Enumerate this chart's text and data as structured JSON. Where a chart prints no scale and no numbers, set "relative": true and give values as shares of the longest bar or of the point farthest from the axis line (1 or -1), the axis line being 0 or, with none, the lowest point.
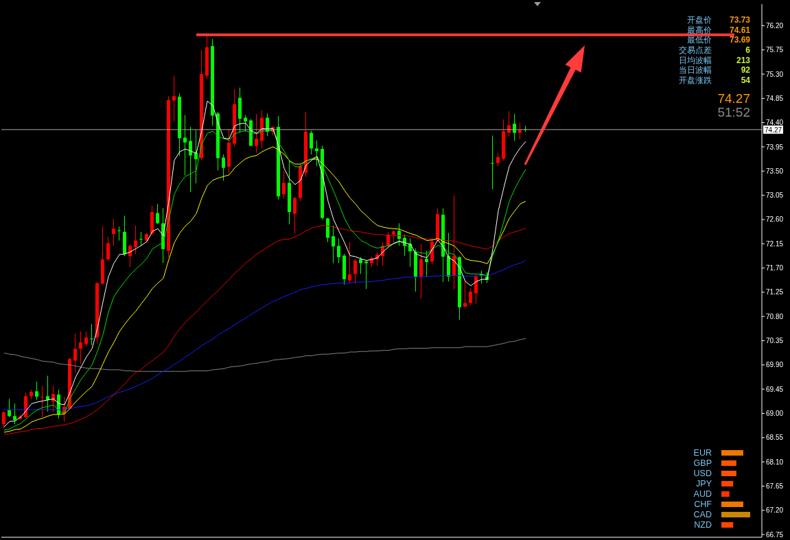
{
  "chart_data": [
    {
      "type": "candlestick",
      "categories": [
        null,
        null,
        null,
        null,
        null,
        null,
        null,
        null,
        null,
        null,
        null,
        null,
        null,
        null,
        null,
        null,
        null,
        null,
        null,
        null,
        null,
        null,
        null,
        null,
        null,
        null,
        null,
        null,
        null,
        null,
        null,
        null,
        null,
        null,
        null,
        null,
        null,
        null,
        null,
        null,
        null,
        null,
        null,
        null,
        null,
        null,
        null,
        null,
        null,
        null,
        null,
        null,
        null,
        null,
        null,
        null,
        null,
        null,
        null,
        null,
        null,
        null,
        null,
        null,
        null,
        null,
        null,
        null,
        null,
        null,
        null,
        null,
        null,
        null,
        null,
        null,
        null,
        null,
        null,
        null,
        null,
        null,
        null,
        null,
        null,
        null,
        null,
        null,
        null,
        null,
        null,
        null,
        null,
        null,
        null,
        null,
        null,
        null,
        null,
        null,
        null,
        null,
        null,
        null,
        null,
        null,
        null,
        null,
        null,
        null,
        null,
        null,
        null,
        null,
        null,
        null,
        null,
        null,
        null,
        null,
        null,
        null,
        null,
        null,
        null,
        null,
        null,
        null,
        null,
        null,
        null,
        null,
        null,
        null,
        null,
        null,
        null,
        null
      ],
      "ohlc": [
        [
          68.8,
          69.05,
          68.72,
          69.02
        ],
        [
          69.06,
          69.27,
          68.93,
          68.95
        ],
        [
          68.95,
          69.18,
          68.8,
          68.88
        ],
        [
          68.9,
          68.98,
          68.88,
          68.94
        ],
        [
          68.93,
          69.39,
          68.92,
          69.32
        ],
        [
          69.32,
          69.44,
          69.26,
          69.4
        ],
        [
          69.41,
          69.59,
          69.25,
          69.31
        ],
        [
          69.3,
          69.51,
          68.93,
          69.31
        ],
        [
          69.32,
          69.7,
          69.03,
          69.25
        ],
        [
          69.22,
          69.51,
          69.03,
          69.36
        ],
        [
          69.35,
          69.44,
          68.9,
          68.98
        ],
        [
          68.99,
          69.31,
          68.84,
          69.12
        ],
        [
          69.09,
          70.04,
          69.08,
          70.01
        ],
        [
          69.98,
          70.48,
          69.76,
          70.2
        ],
        [
          70.2,
          70.52,
          69.92,
          70.32
        ],
        [
          70.29,
          70.52,
          70.24,
          70.41
        ],
        [
          70.39,
          70.66,
          70.27,
          70.38
        ],
        [
          70.41,
          71.43,
          70.3,
          71.42
        ],
        [
          71.41,
          72.47,
          71.39,
          71.86
        ],
        [
          71.86,
          72.28,
          71.83,
          72.16
        ],
        [
          72.33,
          72.61,
          72.11,
          72.43
        ],
        [
          72.4,
          72.47,
          72.21,
          72.39
        ],
        [
          72.37,
          72.67,
          71.92,
          71.96
        ],
        [
          71.92,
          72.14,
          71.72,
          72.11
        ],
        [
          72.09,
          72.49,
          71.96,
          72.21
        ],
        [
          72.24,
          72.37,
          72.12,
          72.23
        ],
        [
          72.21,
          72.35,
          72.19,
          72.33
        ],
        [
          72.34,
          72.86,
          72.3,
          72.74
        ],
        [
          72.72,
          72.89,
          72.52,
          72.53
        ],
        [
          72.53,
          72.81,
          71.79,
          72.05
        ],
        [
          72.02,
          74.89,
          71.9,
          74.82
        ],
        [
          74.81,
          75.27,
          74.42,
          74.89
        ],
        [
          74.88,
          74.94,
          73.78,
          74.11
        ],
        [
          74.12,
          74.54,
          73.42,
          74.03
        ],
        [
          74.06,
          74.32,
          73.11,
          73.79
        ],
        [
          73.84,
          74.26,
          73.27,
          73.72
        ],
        [
          73.74,
          75.75,
          73.7,
          75.3
        ],
        [
          75.27,
          76.0,
          75.21,
          75.8
        ],
        [
          75.82,
          75.95,
          74.34,
          74.53
        ],
        [
          74.57,
          74.6,
          73.51,
          73.74
        ],
        [
          73.75,
          73.81,
          73.32,
          73.56
        ],
        [
          73.58,
          74.28,
          73.46,
          74.03
        ],
        [
          74.01,
          75.02,
          73.96,
          74.74
        ],
        [
          74.86,
          75.05,
          74.21,
          74.47
        ],
        [
          74.49,
          74.54,
          74.23,
          74.42
        ],
        [
          74.44,
          74.47,
          73.96,
          73.97
        ],
        [
          73.97,
          74.56,
          73.84,
          74.1
        ],
        [
          74.06,
          74.63,
          73.93,
          74.49
        ],
        [
          74.49,
          74.57,
          74.15,
          74.23
        ],
        [
          74.23,
          74.33,
          74.16,
          74.32
        ],
        [
          74.32,
          74.52,
          72.97,
          73.03
        ],
        [
          73.07,
          73.5,
          72.99,
          73.28
        ],
        [
          73.28,
          73.7,
          72.51,
          72.74
        ],
        [
          72.71,
          73.02,
          72.34,
          73.0
        ],
        [
          73.0,
          73.64,
          72.94,
          73.59
        ],
        [
          73.47,
          74.6,
          73.39,
          74.23
        ],
        [
          74.21,
          74.25,
          73.81,
          73.92
        ],
        [
          73.92,
          74.07,
          73.59,
          73.87
        ],
        [
          73.91,
          73.97,
          72.6,
          72.63
        ],
        [
          72.62,
          72.63,
          72.18,
          72.26
        ],
        [
          72.29,
          72.49,
          71.79,
          72.1
        ],
        [
          72.11,
          72.25,
          71.79,
          71.9
        ],
        [
          71.93,
          71.96,
          71.39,
          71.49
        ],
        [
          71.47,
          72.18,
          71.41,
          71.58
        ],
        [
          71.59,
          71.86,
          71.41,
          71.84
        ],
        [
          71.86,
          71.9,
          71.59,
          71.79
        ],
        [
          71.82,
          71.83,
          71.31,
          71.79
        ],
        [
          71.79,
          71.91,
          71.72,
          71.88
        ],
        [
          71.86,
          72.0,
          71.74,
          71.95
        ],
        [
          71.92,
          72.18,
          71.74,
          72.11
        ],
        [
          72.12,
          72.37,
          72.09,
          72.32
        ],
        [
          72.32,
          72.39,
          72.18,
          72.38
        ],
        [
          72.39,
          72.53,
          72.11,
          72.24
        ],
        [
          72.26,
          72.32,
          71.93,
          72.11
        ],
        [
          72.15,
          72.25,
          71.72,
          72.01
        ],
        [
          72.0,
          72.06,
          71.26,
          71.54
        ],
        [
          71.54,
          72.15,
          71.13,
          71.86
        ],
        [
          71.87,
          72.02,
          71.54,
          71.81
        ],
        [
          71.82,
          72.26,
          71.77,
          72.19
        ],
        [
          72.21,
          72.81,
          72.19,
          72.7
        ],
        [
          72.69,
          72.81,
          71.44,
          71.91
        ],
        [
          71.92,
          72.35,
          71.45,
          71.54
        ],
        [
          71.56,
          73.05,
          71.3,
          71.92
        ],
        [
          71.9,
          71.91,
          70.74,
          70.97
        ],
        [
          70.98,
          71.45,
          70.98,
          71.05
        ],
        [
          71.05,
          71.32,
          71.0,
          71.26
        ],
        [
          71.23,
          71.58,
          71.04,
          71.54
        ],
        [
          71.59,
          71.65,
          71.41,
          71.56
        ],
        [
          71.54,
          71.62,
          71.42,
          71.48
        ],
        [
          73.65,
          74.16,
          73.16,
          73.64
        ],
        [
          73.65,
          73.84,
          73.59,
          73.76
        ],
        [
          73.73,
          74.46,
          73.69,
          74.24
        ],
        [
          74.21,
          74.61,
          74.14,
          74.35
        ],
        [
          74.38,
          74.56,
          74.06,
          74.21
        ],
        [
          74.21,
          74.4,
          74.09,
          74.26
        ],
        [
          74.28,
          74.34,
          74.23,
          74.27
        ],
        null,
        null,
        null,
        null,
        null,
        null,
        null,
        null,
        null,
        null,
        null,
        null,
        null,
        null,
        null,
        null,
        null,
        null,
        null,
        null,
        null,
        null,
        null,
        null,
        null,
        null,
        null,
        null,
        null,
        null,
        null,
        null,
        null,
        null,
        null,
        null,
        null,
        null,
        null,
        null,
        null,
        null
      ],
      "colors": [
        "#ff0000",
        "#00ff00",
        "#00ff00",
        "#ff0000",
        "#ff0000",
        "#ff0000",
        "#00ff00",
        "#ff0000",
        "#00ff00",
        "#ff0000",
        "#00ff00",
        "#ff0000",
        "#ff0000",
        "#ff0000",
        "#ff0000",
        "#ff0000",
        "#00ff00",
        "#ff0000",
        "#ff0000",
        "#ff0000",
        "#ff0000",
        "#00ff00",
        "#00ff00",
        "#ff0000",
        "#ff0000",
        "#00ff00",
        "#ff0000",
        "#ff0000",
        "#00ff00",
        "#00ff00",
        "#ff0000",
        "#ff0000",
        "#00ff00",
        "#00ff00",
        "#00ff00",
        "#00ff00",
        "#ff0000",
        "#ff0000",
        "#00ff00",
        "#00ff00",
        "#00ff00",
        "#ff0000",
        "#ff0000",
        "#00ff00",
        "#00ff00",
        "#00ff00",
        "#ff0000",
        "#ff0000",
        "#00ff00",
        "#ff0000",
        "#00ff00",
        "#ff0000",
        "#00ff00",
        "#ff0000",
        "#ff0000",
        "#ff0000",
        "#00ff00",
        "#00ff00",
        "#00ff00",
        "#00ff00",
        "#00ff00",
        "#00ff00",
        "#00ff00",
        "#ff0000",
        "#ff0000",
        "#00ff00",
        "#00ff00",
        "#ff0000",
        "#ff0000",
        "#ff0000",
        "#ff0000",
        "#ff0000",
        "#00ff00",
        "#00ff00",
        "#00ff00",
        "#00ff00",
        "#ff0000",
        "#00ff00",
        "#ff0000",
        "#ff0000",
        "#00ff00",
        "#00ff00",
        "#ff0000",
        "#00ff00",
        "#ff0000",
        "#ff0000",
        "#ff0000",
        "#00ff00",
        "#00ff00",
        "#00ff00",
        "#ff0000",
        "#ff0000",
        "#ff0000",
        "#00ff00",
        "#ff0000",
        "#00ff00",
        null,
        null,
        null,
        null,
        null,
        null,
        null,
        null,
        null,
        null,
        null,
        null,
        null,
        null,
        null,
        null,
        null,
        null,
        null,
        null,
        null,
        null,
        null,
        null,
        null,
        null,
        null,
        null,
        null,
        null,
        null,
        null,
        null,
        null,
        null,
        null,
        null,
        null,
        null,
        null,
        null,
        null
      ],
      "series": [
        {
          "type": "line",
          "color": "#808080",
          "values": [
            70.12,
            70.1,
            70.09,
            70.06,
            70.04,
            70.02,
            70.0,
            69.97,
            69.96,
            69.95,
            69.92,
            69.91,
            69.9,
            69.88,
            69.86,
            69.84,
            69.83,
            69.83,
            69.82,
            69.81,
            69.81,
            69.81,
            69.79,
            69.79,
            69.78,
            69.78,
            69.78,
            69.78,
            69.78,
            69.78,
            69.78,
            69.78,
            69.78,
            69.78,
            69.79,
            69.79,
            69.79,
            69.79,
            69.81,
            69.82,
            69.83,
            69.86,
            69.87,
            69.88,
            69.9,
            69.92,
            69.93,
            69.95,
            69.96,
            69.99,
            70.0,
            70.01,
            70.02,
            70.04,
            70.05,
            70.07,
            70.07,
            70.09,
            70.1,
            70.1,
            70.11,
            70.12,
            70.12,
            70.14,
            70.14,
            70.15,
            70.15,
            70.16,
            70.16,
            70.17,
            70.17,
            70.19,
            70.2,
            70.2,
            70.21,
            70.21,
            70.21,
            70.21,
            70.22,
            70.22,
            70.22,
            70.22,
            70.22,
            70.22,
            70.24,
            70.24,
            70.24,
            70.24,
            70.24,
            70.26,
            70.28,
            70.3,
            70.33,
            70.34,
            70.37,
            70.39,
            null,
            null,
            null,
            null,
            null,
            null,
            null,
            null,
            null,
            null,
            null,
            null,
            null,
            null,
            null,
            null,
            null,
            null,
            null,
            null,
            null,
            null,
            null,
            null,
            null,
            null,
            null,
            null,
            null,
            null,
            null,
            null,
            null,
            null,
            null,
            null,
            null,
            null,
            null,
            null,
            null,
            null
          ]
        },
        {
          "type": "line",
          "color": "#1420ff",
          "values": [
            69.07,
            69.07,
            69.07,
            69.07,
            69.07,
            69.07,
            69.07,
            69.07,
            69.07,
            69.07,
            69.07,
            69.08,
            69.09,
            69.11,
            69.13,
            69.14,
            69.17,
            69.21,
            69.26,
            69.31,
            69.35,
            69.39,
            69.42,
            69.46,
            69.5,
            69.55,
            69.6,
            69.65,
            69.72,
            69.78,
            69.84,
            69.91,
            69.97,
            70.05,
            70.11,
            70.19,
            70.26,
            70.32,
            70.38,
            70.46,
            70.52,
            70.58,
            70.65,
            70.71,
            70.77,
            70.84,
            70.9,
            70.96,
            71.02,
            71.08,
            71.12,
            71.17,
            71.21,
            71.25,
            71.3,
            71.32,
            71.35,
            71.37,
            71.39,
            71.4,
            71.41,
            71.42,
            71.42,
            71.42,
            71.44,
            71.44,
            71.44,
            71.45,
            71.46,
            71.47,
            71.49,
            71.5,
            71.51,
            71.53,
            71.53,
            71.53,
            71.54,
            71.54,
            71.55,
            71.55,
            71.56,
            71.56,
            71.56,
            71.56,
            71.55,
            71.55,
            71.55,
            71.56,
            71.56,
            71.59,
            71.63,
            71.67,
            71.72,
            71.76,
            71.79,
            71.84,
            null,
            null,
            null,
            null,
            null,
            null,
            null,
            null,
            null,
            null,
            null,
            null,
            null,
            null,
            null,
            null,
            null,
            null,
            null,
            null,
            null,
            null,
            null,
            null,
            null,
            null,
            null,
            null,
            null,
            null,
            null,
            null,
            null,
            null,
            null,
            null,
            null,
            null,
            null,
            null,
            null,
            null
          ]
        },
        {
          "type": "line",
          "color": "#e00000",
          "values": [
            68.61,
            68.62,
            68.64,
            68.66,
            68.67,
            68.7,
            68.72,
            68.72,
            68.74,
            68.76,
            68.77,
            68.79,
            68.81,
            68.85,
            68.89,
            68.94,
            69.0,
            69.07,
            69.16,
            69.25,
            69.35,
            69.45,
            69.55,
            69.67,
            69.76,
            69.82,
            69.91,
            69.98,
            70.06,
            70.14,
            70.26,
            70.44,
            70.57,
            70.69,
            70.79,
            70.88,
            70.99,
            71.09,
            71.19,
            71.28,
            71.39,
            71.49,
            71.6,
            71.69,
            71.79,
            71.87,
            71.96,
            72.02,
            72.09,
            72.15,
            72.21,
            72.23,
            72.24,
            72.28,
            72.33,
            72.39,
            72.44,
            72.47,
            72.49,
            72.48,
            72.46,
            72.43,
            72.42,
            72.39,
            72.38,
            72.37,
            72.35,
            72.33,
            72.32,
            72.32,
            72.3,
            72.3,
            72.3,
            72.3,
            72.29,
            72.26,
            72.25,
            72.24,
            72.23,
            72.23,
            72.21,
            72.21,
            72.2,
            72.17,
            72.14,
            72.11,
            72.09,
            72.07,
            72.05,
            72.11,
            72.21,
            72.28,
            72.34,
            72.37,
            72.4,
            72.44,
            null,
            null,
            null,
            null,
            null,
            null,
            null,
            null,
            null,
            null,
            null,
            null,
            null,
            null,
            null,
            null,
            null,
            null,
            null,
            null,
            null,
            null,
            null,
            null,
            null,
            null,
            null,
            null,
            null,
            null,
            null,
            null,
            null,
            null,
            null,
            null,
            null,
            null,
            null,
            null,
            null,
            null
          ]
        },
        {
          "type": "line",
          "color": "#ffff00",
          "values": [
            68.65,
            68.67,
            68.7,
            68.71,
            68.77,
            68.84,
            68.88,
            68.91,
            68.95,
            68.98,
            68.98,
            68.99,
            69.09,
            69.21,
            69.31,
            69.41,
            69.5,
            69.7,
            69.92,
            70.14,
            70.32,
            70.52,
            70.66,
            70.79,
            70.9,
            71.04,
            71.17,
            71.32,
            71.42,
            71.51,
            71.86,
            72.17,
            72.35,
            72.48,
            72.57,
            72.71,
            73.0,
            73.23,
            73.33,
            73.37,
            73.4,
            73.43,
            73.56,
            73.65,
            73.73,
            73.77,
            73.79,
            73.86,
            73.91,
            73.95,
            73.89,
            73.81,
            73.69,
            73.63,
            73.63,
            73.69,
            73.72,
            73.72,
            73.64,
            73.53,
            73.42,
            73.3,
            73.14,
            73.0,
            72.89,
            72.76,
            72.67,
            72.57,
            72.49,
            72.46,
            72.44,
            72.43,
            72.42,
            72.38,
            72.34,
            72.31,
            72.26,
            72.21,
            72.22,
            72.25,
            72.19,
            72.15,
            72.11,
            72.0,
            71.87,
            71.84,
            71.83,
            71.81,
            71.78,
            71.96,
            72.19,
            72.4,
            72.62,
            72.76,
            72.89,
            72.94,
            null,
            null,
            null,
            null,
            null,
            null,
            null,
            null,
            null,
            null,
            null,
            null,
            null,
            null,
            null,
            null,
            null,
            null,
            null,
            null,
            null,
            null,
            null,
            null,
            null,
            null,
            null,
            null,
            null,
            null,
            null,
            null,
            null,
            null,
            null,
            null,
            null,
            null,
            null,
            null,
            null,
            null
          ]
        },
        {
          "type": "line",
          "color": "#00e000",
          "values": [
            68.69,
            68.71,
            68.77,
            68.81,
            68.9,
            68.99,
            69.06,
            69.11,
            69.13,
            69.16,
            69.04,
            69.0,
            69.28,
            69.45,
            69.63,
            69.76,
            69.9,
            70.15,
            70.46,
            70.88,
            71.17,
            71.32,
            71.45,
            71.58,
            71.68,
            71.77,
            71.88,
            72.05,
            72.12,
            72.17,
            72.6,
            73.07,
            73.27,
            73.4,
            73.45,
            73.51,
            74.0,
            74.2,
            74.24,
            74.14,
            74.1,
            74.07,
            74.19,
            74.23,
            74.25,
            74.21,
            74.19,
            74.24,
            74.25,
            74.25,
            74.02,
            73.87,
            73.68,
            73.58,
            73.58,
            73.69,
            73.73,
            73.77,
            73.59,
            73.36,
            73.13,
            72.88,
            72.62,
            72.43,
            72.32,
            72.21,
            72.16,
            72.1,
            72.07,
            72.09,
            72.12,
            72.15,
            72.19,
            72.15,
            72.05,
            72.0,
            71.98,
            71.97,
            72.05,
            72.12,
            72.09,
            71.98,
            71.95,
            71.79,
            71.61,
            71.59,
            71.59,
            71.58,
            71.56,
            71.93,
            72.21,
            72.56,
            72.94,
            73.17,
            73.36,
            73.53,
            null,
            null,
            null,
            null,
            null,
            null,
            null,
            null,
            null,
            null,
            null,
            null,
            null,
            null,
            null,
            null,
            null,
            null,
            null,
            null,
            null,
            null,
            null,
            null,
            null,
            null,
            null,
            null,
            null,
            null,
            null,
            null,
            null,
            null,
            null,
            null,
            null,
            null,
            null,
            null,
            null,
            null
          ]
        },
        {
          "type": "line",
          "color": "#ffffff",
          "values": [
            68.75,
            68.85,
            68.86,
            68.93,
            69.05,
            69.18,
            69.21,
            69.23,
            69.25,
            69.27,
            69.18,
            69.16,
            69.39,
            69.67,
            69.86,
            70.05,
            70.2,
            70.58,
            71.07,
            71.54,
            71.79,
            71.95,
            71.96,
            72.0,
            72.06,
            72.12,
            72.19,
            72.38,
            72.43,
            72.3,
            72.94,
            73.7,
            73.86,
            73.91,
            73.87,
            73.83,
            74.25,
            74.8,
            74.72,
            74.38,
            74.11,
            74.1,
            74.34,
            74.38,
            74.39,
            74.25,
            74.2,
            74.29,
            74.28,
            74.29,
            73.96,
            73.55,
            73.35,
            73.25,
            73.33,
            73.61,
            73.7,
            73.77,
            73.42,
            72.94,
            72.6,
            72.38,
            72.17,
            71.93,
            71.91,
            71.87,
            71.84,
            71.86,
            71.89,
            72.0,
            72.09,
            72.16,
            72.2,
            72.17,
            72.14,
            71.96,
            71.92,
            71.89,
            72.05,
            72.22,
            72.09,
            71.89,
            71.83,
            71.7,
            71.45,
            71.37,
            71.45,
            71.49,
            71.49,
            72.05,
            72.76,
            73.19,
            73.59,
            73.78,
            73.93,
            74.05,
            null,
            null,
            null,
            null,
            null,
            null,
            null,
            null,
            null,
            null,
            null,
            null,
            null,
            null,
            null,
            null,
            null,
            null,
            null,
            null,
            null,
            null,
            null,
            null,
            null,
            null,
            null,
            null,
            null,
            null,
            null,
            null,
            null,
            null,
            null,
            null,
            null,
            null,
            null,
            null,
            null,
            null
          ]
        },
        {
          "type": "line",
          "color": "#ff3838",
          "values": [
            null,
            null,
            null,
            null,
            null,
            null,
            null,
            null,
            null,
            null,
            null,
            null,
            null,
            null,
            null,
            null,
            null,
            null,
            null,
            null,
            null,
            null,
            null,
            null,
            null,
            null,
            null,
            null,
            null,
            null,
            null,
            null,
            null,
            null,
            null,
            76.03,
            76.03,
            76.03,
            76.03,
            76.03,
            76.03,
            76.03,
            76.03,
            76.03,
            76.03,
            76.03,
            76.03,
            76.03,
            76.03,
            76.03,
            76.03,
            76.03,
            76.03,
            76.03,
            76.03,
            76.03,
            76.03,
            76.03,
            76.03,
            76.03,
            76.03,
            76.03,
            76.03,
            76.03,
            76.03,
            76.03,
            76.03,
            76.03,
            76.03,
            76.03,
            76.03,
            76.03,
            76.03,
            76.03,
            76.03,
            76.03,
            76.03,
            76.03,
            76.03,
            76.03,
            76.03,
            76.03,
            76.03,
            76.03,
            76.03,
            76.03,
            76.03,
            76.03,
            76.03,
            76.03,
            76.03,
            76.03,
            76.03,
            76.03,
            76.03,
            76.03,
            76.03,
            76.03,
            76.03,
            76.03,
            76.03,
            76.03,
            76.03,
            76.03,
            76.03,
            76.03,
            76.03,
            76.03,
            76.03,
            76.03,
            76.03,
            76.03,
            76.03,
            76.03,
            76.03,
            76.03,
            76.03,
            76.03,
            76.03,
            76.03,
            76.03,
            76.03,
            76.03,
            76.03,
            76.03,
            76.03,
            76.03,
            76.03,
            76.03,
            76.03,
            76.03,
            76.03,
            76.03,
            76.03,
            null,
            null,
            null,
            null
          ]
        }
      ],
      "ylim": [
        66.7,
        76.6
      ],
      "yticks": [
        {
          "value": 76.2,
          "label": "76.20"
        },
        75.75,
        {
          "value": 75.3,
          "label": "75.30"
        },
        74.85,
        {
          "value": 74.4,
          "label": "74.40"
        },
        73.95,
        {
          "value": 73.5,
          "label": "73.50"
        },
        73.05,
        {
          "value": 72.6,
          "label": "72.60"
        },
        72.15,
        {
          "value": 71.7,
          "label": "71.70"
        },
        71.25,
        {
          "value": 70.8,
          "label": "70.80"
        },
        70.35,
        {
          "value": 69.9,
          "label": "69.90"
        },
        69.45,
        {
          "value": 69,
          "label": "69.00"
        },
        68.55,
        {
          "value": 68.1,
          "label": "68.10"
        },
        67.65,
        {
          "value": 67.2,
          "label": "67.20"
        },
        66.75
      ],
      "tick_labels": "y",
      "ref_lines": [
        {
          "axis": "y",
          "value": 74.27,
          "label": "74.27",
          "color": "#a8a8a8"
        }
      ],
      "annotations": [
        "开盘价 73.73",
        "最高价 74.61",
        "最低价 73.69",
        "交易点差 6",
        "日均波幅 213",
        "当日波幅 92",
        "开盘涨跌 54",
        "74.27",
        "51:52"
      ]
    },
    {
      "type": "bar",
      "orientation": "horizontal",
      "relative": true,
      "categories": [
        "EUR",
        "GBP",
        "USD",
        "JPY",
        "AUD",
        "CHF",
        "CAD",
        "NZD"
      ],
      "values": [
        0.76,
        0.52,
        0.52,
        0.41,
        0.28,
        0.76,
        1,
        0.41
      ],
      "colors": [
        "#ee7700",
        "#ff5500",
        "#ff5500",
        "#ff4400",
        "#ff3300",
        "#ee7700",
        "#cc8800",
        "#ff4400"
      ]
    }
  ]
}
